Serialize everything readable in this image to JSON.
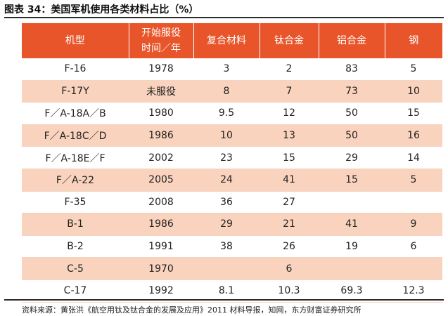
{
  "figure": {
    "title": "图表 34：美国军机使用各类材料占比（%）"
  },
  "table": {
    "headers": [
      "机型",
      "开始服役\n时间／年",
      "复合材料",
      "钛合金",
      "铝合金",
      "钢"
    ],
    "rows": [
      [
        "F-16",
        "1978",
        "3",
        "2",
        "83",
        "5"
      ],
      [
        "F-17Y",
        "未服役",
        "8",
        "7",
        "73",
        "10"
      ],
      [
        "F／A-18A／B",
        "1980",
        "9.5",
        "12",
        "50",
        "15"
      ],
      [
        "F／A-18C／D",
        "1986",
        "10",
        "13",
        "50",
        "16"
      ],
      [
        "F／A-18E／F",
        "2002",
        "23",
        "15",
        "29",
        "14"
      ],
      [
        "F／A-22",
        "2005",
        "24",
        "41",
        "15",
        "5"
      ],
      [
        "F-35",
        "2008",
        "36",
        "27",
        "",
        ""
      ],
      [
        "B-1",
        "1986",
        "29",
        "21",
        "41",
        "9"
      ],
      [
        "B-2",
        "1991",
        "38",
        "26",
        "19",
        "6"
      ],
      [
        "C-5",
        "1970",
        "",
        "6",
        "",
        ""
      ],
      [
        "C-17",
        "1992",
        "8.1",
        "10.3",
        "69.3",
        "12.3"
      ]
    ]
  },
  "source": "资料来源：黄张洪《航空用钛及钛合金的发展及应用》2011 材料导报，知网，东方财富证券研究所",
  "colors": {
    "header_bg": "#e8552b",
    "header_text": "#ffffff",
    "alt_row_bg": "#f9d3bd",
    "rule": "#2b2b2b"
  }
}
